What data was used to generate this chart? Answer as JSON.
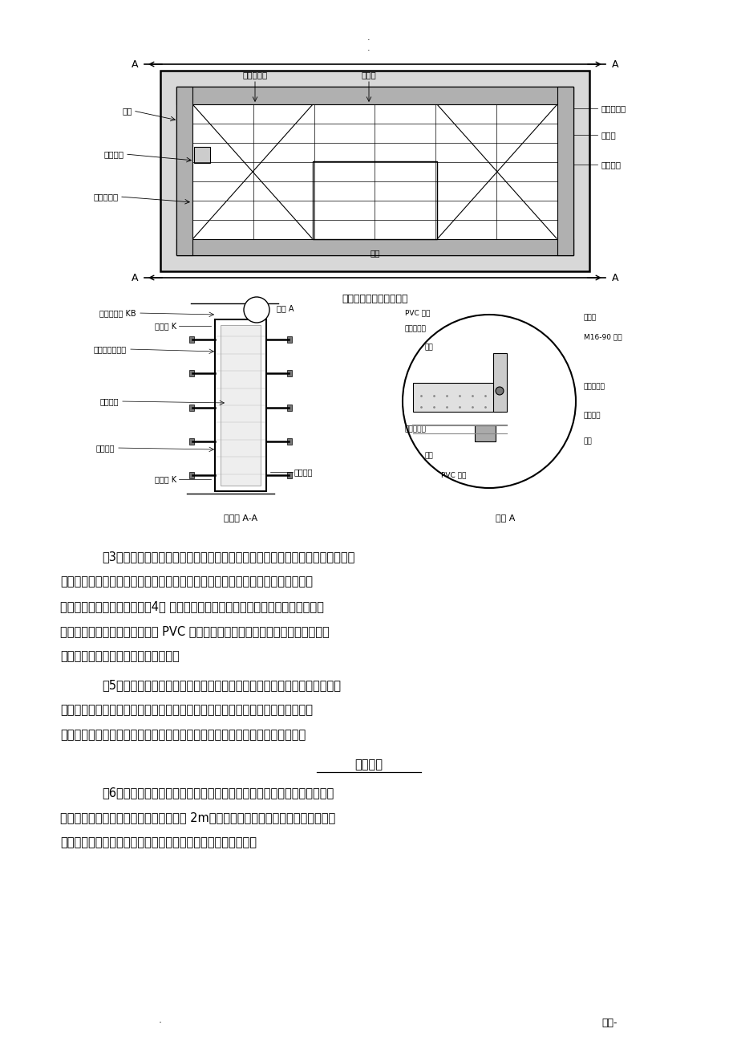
{
  "bg_color": "#ffffff",
  "page_width": 9.2,
  "page_height": 13.02,
  "diagram1_caption": "标准墙铝合金模板平面图",
  "diagram2_left_caption": "剖面图 A-A",
  "diagram2_right_caption": "大样 A",
  "paragraph3_line0": "〔3〕墙柱铝模拼装之前，必须对板面进展全面清理，涂刷脱模剂。脱模剂涂刷要",
  "paragraph3_lines": [
    "薄而匀，不得漏刷，涂刷时，要注意周围环境，防止散落在建筑物、机具和人身衣",
    "物上，更不得刷在钢筋上。〔4〕 按编号依次拼装好墙柱铝模，封闭墙柱铝模之前，",
    "需在墙柱模紧固螺杆上预先外套 PVC 管，同时要保证套管与墙两边模板面接触位置",
    "要准确，以便浇注后能收回对拉螺杆。"
  ],
  "paragraph5_line0": "〔5〕梁铝模安装　　按试拼装图编号依次拼装好梁底模，梁侧模，梁顶角模",
  "paragraph5_lines": [
    "及墙顶角膜，用支撑杆调节梁底标高，以便模板间的连接，梁底的支撑杆应垂直，",
    "无松动。梁底模与底模间，底模与侧模间的连接也应采用螺栓连接，防止涨模。"
  ],
  "subtitle_liang": "梁底支撑",
  "paragraph6_line0": "〔6〕板铝模安装　　安装完墙顶、梁顶角模后，安装面板支撑杆，支撑立",
  "paragraph6_lines": [
    "杆应经过荷载计算确定间距，一般不大于 2m。然后从角部开场，依次拼装标准板模，",
    "直至铝模全部拼装完成。面板支撑底的支撑杆应垂直，无松动。"
  ],
  "footer_right": "优选-"
}
